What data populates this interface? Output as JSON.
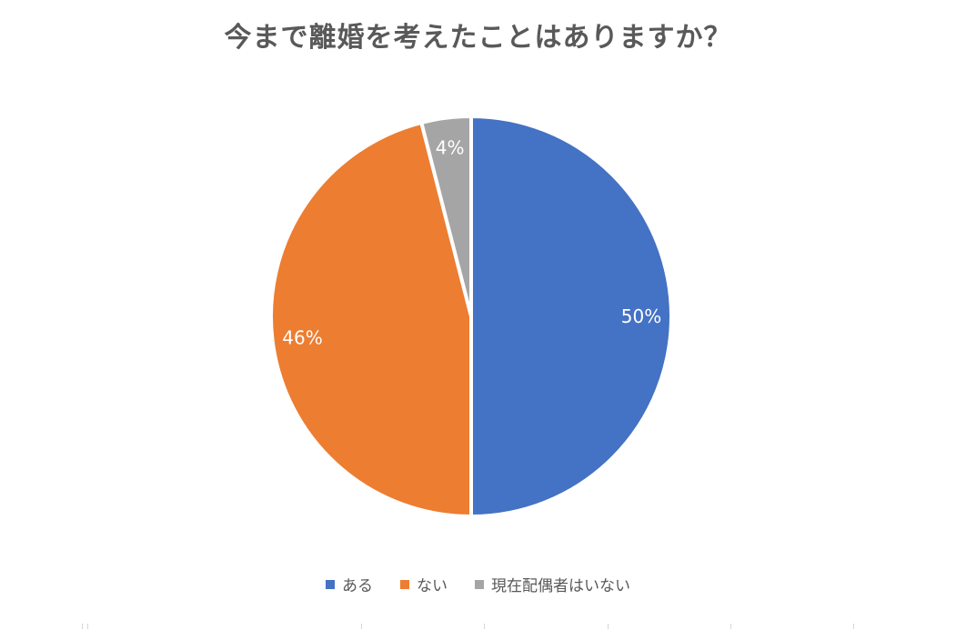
{
  "chart_data": {
    "type": "pie",
    "title": "今まで離婚を考えたことはありますか？",
    "categories": [
      "ある",
      "ない",
      "現在配偶者はいない"
    ],
    "values": [
      50,
      46,
      4
    ],
    "data_labels": [
      "50%",
      "46%",
      "4%"
    ],
    "colors": [
      "#4472C4",
      "#ED7D31",
      "#A5A5A5"
    ],
    "slice_border_color": "#FFFFFF",
    "data_label_color": "#FFFFFF",
    "title_color": "#595959",
    "legend_text_color": "#595959",
    "legend_position": "bottom",
    "start_angle_deg": 0,
    "direction": "clockwise"
  }
}
